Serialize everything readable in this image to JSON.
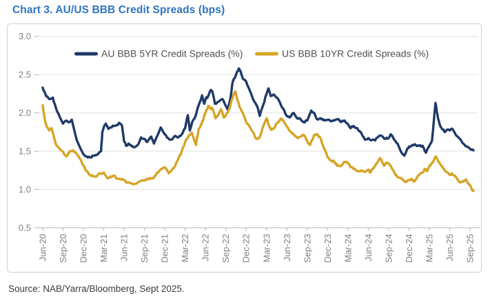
{
  "page": {
    "title": "Chart 3. AU/US BBB Credit Spreads (bps)",
    "title_color": "#2f74c0",
    "source": "Source: NAB/Yarra/Bloomberg, Sept 2025."
  },
  "chart_data": {
    "type": "line",
    "title": "Chart 3. AU/US BBB Credit Spreads (bps)",
    "x_unit": "months_since_Jun-2020",
    "x_tick_labels": [
      "Jun-20",
      "Sep-20",
      "Dec-20",
      "Mar-21",
      "Jun-21",
      "Sep-21",
      "Dec-21",
      "Mar-22",
      "Jun-22",
      "Sep-22",
      "Dec-22",
      "Mar-23",
      "Jun-23",
      "Sep-23",
      "Dec-23",
      "Mar-24",
      "Jun-24",
      "Sep-24",
      "Dec-24",
      "Mar-25",
      "Jun-25",
      "Sep-25"
    ],
    "x_tick_step_months": 3,
    "ylim": [
      0.5,
      3.0
    ],
    "y_ticks": [
      3.0,
      2.5,
      2.0,
      1.5,
      1.0,
      0.5
    ],
    "grid": "horizontal",
    "legend_position": "top-inside",
    "colors": {
      "axis": "#bdbdbd",
      "grid": "#e2e2e2",
      "tick_labels": "#7f7f7f",
      "legend_text": "#4f4f4f"
    },
    "series": [
      {
        "name": "AU BBB 5YR Credit Spreads (%)",
        "color": "#1f3a68",
        "points": [
          [
            0,
            2.33
          ],
          [
            0.5,
            2.22
          ],
          [
            1,
            2.18
          ],
          [
            1.5,
            2.2
          ],
          [
            2,
            2.05
          ],
          [
            2.5,
            1.95
          ],
          [
            3,
            1.86
          ],
          [
            3.5,
            1.9
          ],
          [
            4,
            1.88
          ],
          [
            4.3,
            1.91
          ],
          [
            5,
            1.65
          ],
          [
            6,
            1.46
          ],
          [
            6.5,
            1.43
          ],
          [
            7,
            1.42
          ],
          [
            7.5,
            1.44
          ],
          [
            8,
            1.45
          ],
          [
            8.6,
            1.5
          ],
          [
            8.8,
            1.75
          ],
          [
            9,
            1.81
          ],
          [
            9.3,
            1.86
          ],
          [
            9.7,
            1.79
          ],
          [
            10,
            1.81
          ],
          [
            10.5,
            1.83
          ],
          [
            11,
            1.84
          ],
          [
            11.3,
            1.87
          ],
          [
            11.7,
            1.83
          ],
          [
            12,
            1.63
          ],
          [
            12.3,
            1.57
          ],
          [
            12.7,
            1.6
          ],
          [
            13,
            1.58
          ],
          [
            13.4,
            1.55
          ],
          [
            14,
            1.58
          ],
          [
            14.5,
            1.68
          ],
          [
            15,
            1.66
          ],
          [
            15.4,
            1.62
          ],
          [
            16,
            1.69
          ],
          [
            16.4,
            1.6
          ],
          [
            17,
            1.72
          ],
          [
            17.4,
            1.81
          ],
          [
            18,
            1.72
          ],
          [
            18.5,
            1.67
          ],
          [
            19,
            1.65
          ],
          [
            19.5,
            1.7
          ],
          [
            20,
            1.68
          ],
          [
            20.5,
            1.72
          ],
          [
            21,
            1.8
          ],
          [
            21.4,
            1.97
          ],
          [
            21.7,
            1.77
          ],
          [
            22,
            1.87
          ],
          [
            22.5,
            1.95
          ],
          [
            23,
            2.1
          ],
          [
            23.5,
            2.23
          ],
          [
            23.8,
            2.12
          ],
          [
            24,
            2.18
          ],
          [
            24.4,
            2.22
          ],
          [
            24.8,
            2.3
          ],
          [
            25,
            2.28
          ],
          [
            25.4,
            2.12
          ],
          [
            26,
            2.15
          ],
          [
            26.5,
            2.18
          ],
          [
            27,
            2.09
          ],
          [
            27.3,
            2.04
          ],
          [
            27.7,
            2.2
          ],
          [
            28,
            2.4
          ],
          [
            28.5,
            2.5
          ],
          [
            28.9,
            2.58
          ],
          [
            29.2,
            2.54
          ],
          [
            29.5,
            2.45
          ],
          [
            30,
            2.41
          ],
          [
            30.5,
            2.3
          ],
          [
            31,
            2.18
          ],
          [
            31.6,
            2.09
          ],
          [
            32,
            1.96
          ],
          [
            32.5,
            2.1
          ],
          [
            33,
            2.25
          ],
          [
            33.3,
            2.32
          ],
          [
            33.6,
            2.22
          ],
          [
            34,
            2.24
          ],
          [
            34.5,
            2.2
          ],
          [
            35,
            2.13
          ],
          [
            35.5,
            2.05
          ],
          [
            36,
            1.96
          ],
          [
            36.4,
            1.94
          ],
          [
            37,
            2
          ],
          [
            37.5,
            1.93
          ],
          [
            38,
            1.92
          ],
          [
            38.4,
            1.88
          ],
          [
            39,
            1.9
          ],
          [
            39.6,
            2.03
          ],
          [
            40,
            2
          ],
          [
            40.4,
            1.92
          ],
          [
            41,
            1.93
          ],
          [
            41.5,
            1.9
          ],
          [
            42,
            1.91
          ],
          [
            42.5,
            1.89
          ],
          [
            43,
            1.9
          ],
          [
            43.5,
            1.92
          ],
          [
            44,
            1.88
          ],
          [
            44.5,
            1.9
          ],
          [
            45,
            1.85
          ],
          [
            45.4,
            1.8
          ],
          [
            45.8,
            1.83
          ],
          [
            46,
            1.81
          ],
          [
            46.5,
            1.78
          ],
          [
            47,
            1.73
          ],
          [
            47.5,
            1.65
          ],
          [
            48,
            1.67
          ],
          [
            48.4,
            1.64
          ],
          [
            49,
            1.64
          ],
          [
            49.6,
            1.7
          ],
          [
            50,
            1.7
          ],
          [
            50.5,
            1.66
          ],
          [
            51,
            1.67
          ],
          [
            51.3,
            1.72
          ],
          [
            52,
            1.63
          ],
          [
            52.5,
            1.56
          ],
          [
            53,
            1.47
          ],
          [
            53.3,
            1.44
          ],
          [
            53.7,
            1.52
          ],
          [
            54,
            1.56
          ],
          [
            54.5,
            1.58
          ],
          [
            55,
            1.58
          ],
          [
            55.5,
            1.57
          ],
          [
            56,
            1.57
          ],
          [
            56.5,
            1.48
          ],
          [
            57,
            1.57
          ],
          [
            57.4,
            1.64
          ],
          [
            57.9,
            2.13
          ],
          [
            58.1,
            2.02
          ],
          [
            58.3,
            1.92
          ],
          [
            58.6,
            1.83
          ],
          [
            59,
            1.78
          ],
          [
            59.3,
            1.75
          ],
          [
            59.6,
            1.78
          ],
          [
            60,
            1.77
          ],
          [
            60.4,
            1.79
          ],
          [
            61,
            1.7
          ],
          [
            61.5,
            1.66
          ],
          [
            62,
            1.6
          ],
          [
            62.5,
            1.56
          ],
          [
            63,
            1.53
          ],
          [
            63.5,
            1.51
          ]
        ]
      },
      {
        "name": "US BBB 10YR Credit Spreads (%)",
        "color": "#d6a426",
        "points": [
          [
            0,
            2.1
          ],
          [
            0.3,
            1.92
          ],
          [
            0.6,
            1.82
          ],
          [
            1,
            1.77
          ],
          [
            1.3,
            1.8
          ],
          [
            2,
            1.58
          ],
          [
            2.5,
            1.53
          ],
          [
            3,
            1.49
          ],
          [
            3.5,
            1.43
          ],
          [
            4,
            1.5
          ],
          [
            4.5,
            1.51
          ],
          [
            5,
            1.47
          ],
          [
            5.5,
            1.4
          ],
          [
            6,
            1.31
          ],
          [
            6.5,
            1.24
          ],
          [
            7,
            1.19
          ],
          [
            7.5,
            1.17
          ],
          [
            8,
            1.17
          ],
          [
            8.5,
            1.21
          ],
          [
            9,
            1.22
          ],
          [
            9.5,
            1.15
          ],
          [
            10,
            1.17
          ],
          [
            10.5,
            1.18
          ],
          [
            11,
            1.14
          ],
          [
            11.5,
            1.13
          ],
          [
            12,
            1.12
          ],
          [
            12.5,
            1.09
          ],
          [
            13,
            1.08
          ],
          [
            13.5,
            1.07
          ],
          [
            14,
            1.09
          ],
          [
            14.5,
            1.11
          ],
          [
            15,
            1.12
          ],
          [
            15.5,
            1.14
          ],
          [
            16,
            1.14
          ],
          [
            16.5,
            1.17
          ],
          [
            17,
            1.22
          ],
          [
            17.5,
            1.27
          ],
          [
            18,
            1.29
          ],
          [
            18.6,
            1.21
          ],
          [
            19,
            1.25
          ],
          [
            19.5,
            1.3
          ],
          [
            20,
            1.4
          ],
          [
            20.5,
            1.5
          ],
          [
            21,
            1.62
          ],
          [
            21.5,
            1.7
          ],
          [
            22,
            1.74
          ],
          [
            22.6,
            1.58
          ],
          [
            23,
            1.79
          ],
          [
            23.5,
            1.88
          ],
          [
            24,
            2
          ],
          [
            24.4,
            2.09
          ],
          [
            24.8,
            2.05
          ],
          [
            25,
            2.06
          ],
          [
            25.5,
            1.93
          ],
          [
            26,
            1.99
          ],
          [
            26.3,
            2.05
          ],
          [
            26.7,
            1.94
          ],
          [
            27,
            1.97
          ],
          [
            27.5,
            2.05
          ],
          [
            28,
            2.2
          ],
          [
            28.4,
            2.28
          ],
          [
            28.8,
            2.15
          ],
          [
            29,
            2.08
          ],
          [
            29.5,
            2
          ],
          [
            30,
            1.88
          ],
          [
            30.5,
            1.82
          ],
          [
            31,
            1.75
          ],
          [
            31.5,
            1.66
          ],
          [
            32,
            1.68
          ],
          [
            32.4,
            1.8
          ],
          [
            33,
            1.93
          ],
          [
            33.4,
            1.82
          ],
          [
            33.7,
            1.78
          ],
          [
            34,
            1.79
          ],
          [
            34.6,
            1.87
          ],
          [
            35,
            1.91
          ],
          [
            35.3,
            1.92
          ],
          [
            36,
            1.82
          ],
          [
            36.5,
            1.76
          ],
          [
            37,
            1.72
          ],
          [
            37.6,
            1.67
          ],
          [
            38,
            1.69
          ],
          [
            38.5,
            1.71
          ],
          [
            39,
            1.63
          ],
          [
            39.4,
            1.58
          ],
          [
            40,
            1.71
          ],
          [
            40.5,
            1.72
          ],
          [
            41,
            1.66
          ],
          [
            41.4,
            1.55
          ],
          [
            42,
            1.42
          ],
          [
            42.5,
            1.38
          ],
          [
            43,
            1.36
          ],
          [
            43.4,
            1.31
          ],
          [
            44,
            1.31
          ],
          [
            44.5,
            1.36
          ],
          [
            45,
            1.34
          ],
          [
            45.5,
            1.29
          ],
          [
            46,
            1.27
          ],
          [
            46.4,
            1.24
          ],
          [
            47,
            1.25
          ],
          [
            47.5,
            1.23
          ],
          [
            48,
            1.26
          ],
          [
            48.3,
            1.22
          ],
          [
            49,
            1.31
          ],
          [
            49.7,
            1.41
          ],
          [
            50,
            1.37
          ],
          [
            50.3,
            1.31
          ],
          [
            50.7,
            1.35
          ],
          [
            51,
            1.34
          ],
          [
            51.5,
            1.27
          ],
          [
            52,
            1.19
          ],
          [
            52.4,
            1.16
          ],
          [
            53,
            1.13
          ],
          [
            53.4,
            1.1
          ],
          [
            54,
            1.12
          ],
          [
            54.4,
            1.14
          ],
          [
            54.7,
            1.1
          ],
          [
            55,
            1.13
          ],
          [
            55.5,
            1.19
          ],
          [
            56,
            1.22
          ],
          [
            56.4,
            1.27
          ],
          [
            56.7,
            1.24
          ],
          [
            57,
            1.31
          ],
          [
            57.5,
            1.35
          ],
          [
            57.9,
            1.43
          ],
          [
            58.2,
            1.39
          ],
          [
            58.6,
            1.33
          ],
          [
            59,
            1.28
          ],
          [
            59.5,
            1.23
          ],
          [
            60,
            1.19
          ],
          [
            60.3,
            1.21
          ],
          [
            61,
            1.15
          ],
          [
            61.4,
            1.1
          ],
          [
            62,
            1.1
          ],
          [
            62.4,
            1.13
          ],
          [
            62.8,
            1.07
          ],
          [
            63,
            1.05
          ],
          [
            63.3,
            0.99
          ],
          [
            63.5,
            0.98
          ]
        ]
      }
    ]
  }
}
